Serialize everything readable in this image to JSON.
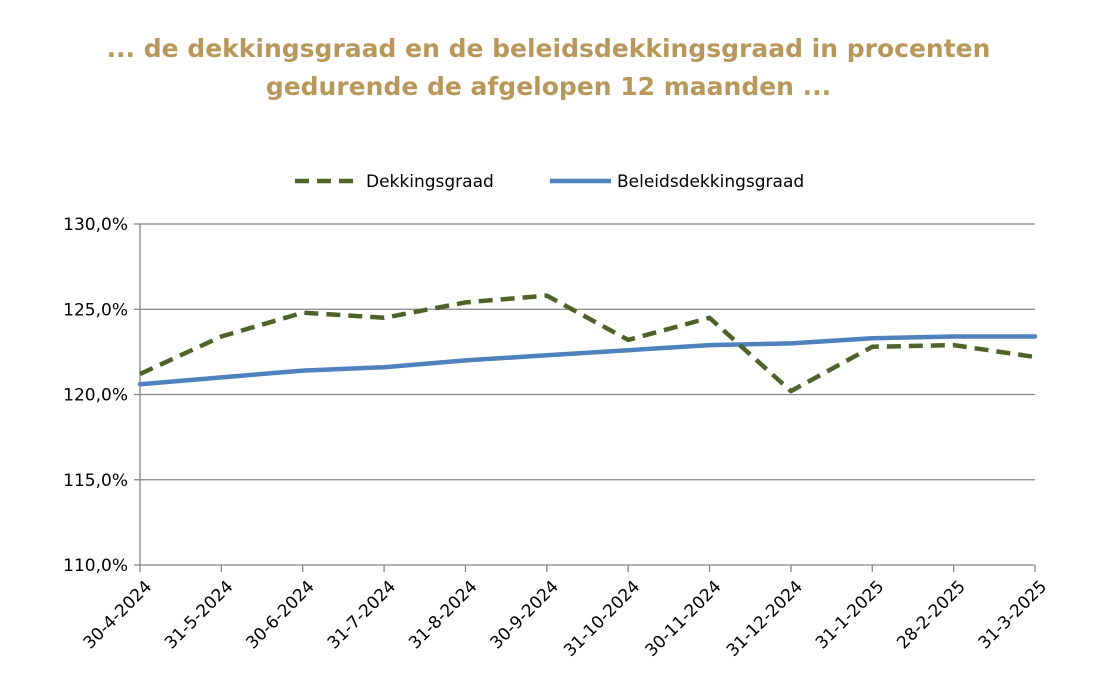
{
  "title": {
    "line1": "... de dekkingsgraad en de beleidsdekkingsgraad in procenten",
    "line2": "gedurende de afgelopen 12 maanden ..."
  },
  "chart_data": {
    "type": "line",
    "title": "... de dekkingsgraad en de beleidsdekkingsgraad in procenten gedurende de afgelopen 12 maanden ...",
    "xlabel": "",
    "ylabel": "",
    "categories": [
      "30-4-2024",
      "31-5-2024",
      "30-6-2024",
      "31-7-2024",
      "31-8-2024",
      "30-9-2024",
      "31-10-2024",
      "30-11-2024",
      "31-12-2024",
      "31-1-2025",
      "28-2-2025",
      "31-3-2025"
    ],
    "series": [
      {
        "name": "Dekkingsgraad",
        "values": [
          121.2,
          123.4,
          124.8,
          124.5,
          125.4,
          125.8,
          123.2,
          124.5,
          120.2,
          122.8,
          122.9,
          122.2
        ],
        "color": "#4F6228",
        "style": "dashed"
      },
      {
        "name": "Beleidsdekkingsgraad",
        "values": [
          120.6,
          121.0,
          121.4,
          121.6,
          122.0,
          122.3,
          122.6,
          122.9,
          123.0,
          123.3,
          123.4,
          123.4
        ],
        "color": "#4F81BD",
        "style": "solid"
      }
    ],
    "ylim": [
      110,
      130
    ],
    "yticks": [
      110,
      115,
      120,
      125,
      130
    ],
    "ytick_labels": [
      "110,0%",
      "115,0%",
      "120,0%",
      "125,0%",
      "130,0%"
    ],
    "grid": true,
    "legend": "top-center"
  }
}
